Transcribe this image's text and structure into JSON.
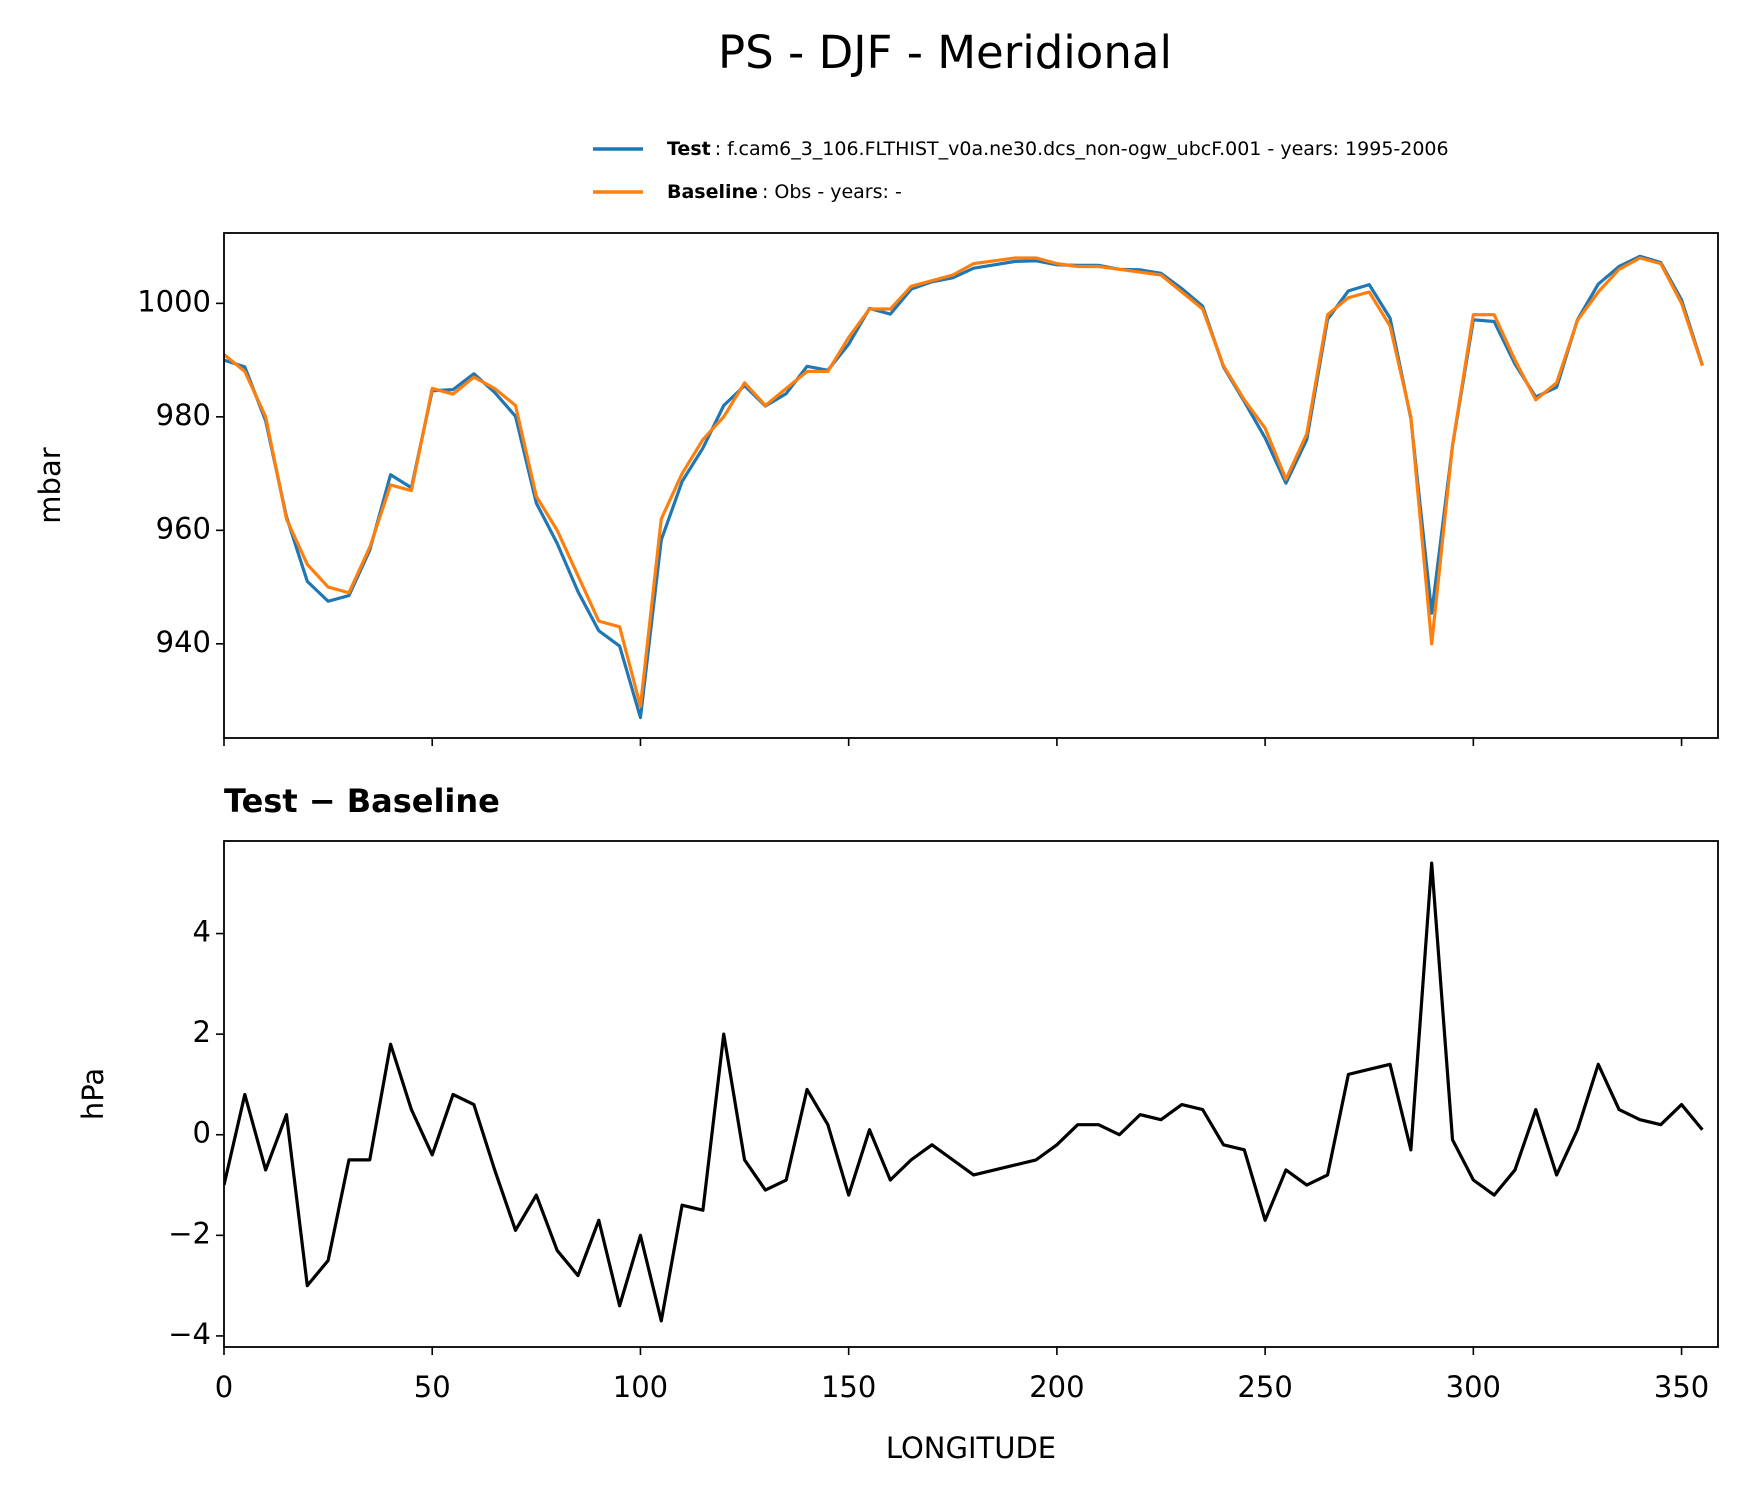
{
  "title": "PS - DJF - Meridional",
  "chart_data": [
    {
      "type": "line",
      "ylabel": "mbar",
      "x": [
        0,
        5,
        10,
        15,
        20,
        25,
        30,
        35,
        40,
        45,
        50,
        55,
        60,
        65,
        70,
        75,
        80,
        85,
        90,
        95,
        100,
        105,
        110,
        115,
        120,
        125,
        130,
        135,
        140,
        145,
        150,
        155,
        160,
        165,
        170,
        175,
        180,
        185,
        190,
        195,
        200,
        205,
        210,
        215,
        220,
        225,
        230,
        235,
        240,
        245,
        250,
        255,
        260,
        265,
        270,
        275,
        280,
        285,
        290,
        295,
        300,
        305,
        310,
        315,
        320,
        325,
        330,
        335,
        340,
        345,
        350,
        355
      ],
      "series": [
        {
          "name": "Test",
          "description": ": f.cam6_3_106.FLTHIST_v0a.ne30.dcs_non-ogw_ubcF.001 - years: 1995-2006",
          "color": "#1f77b4",
          "values": [
            990,
            988.8,
            979.3,
            962.4,
            951,
            947.5,
            948.5,
            956.5,
            969.8,
            967.5,
            984.6,
            984.8,
            987.6,
            984.3,
            980.1,
            964.8,
            957.7,
            949.2,
            942.3,
            939.6,
            927,
            958.3,
            968.6,
            974.5,
            982,
            985.5,
            981.9,
            984.1,
            988.9,
            988.2,
            992.8,
            999.1,
            998.1,
            1002.5,
            1003.8,
            1004.5,
            1006.2,
            1006.8,
            1007.4,
            1007.5,
            1006.8,
            1006.7,
            1006.7,
            1006,
            1005.9,
            1005.3,
            1002.6,
            999.5,
            988.8,
            982.7,
            976.3,
            968.3,
            976,
            997.2,
            1002.2,
            1003.3,
            997.4,
            979.7,
            945.4,
            974.9,
            997.1,
            996.8,
            989.3,
            983.5,
            985.2,
            997.1,
            1003.4,
            1006.5,
            1008.3,
            1007.2,
            1000.6,
            989.1
          ]
        },
        {
          "name": "Baseline",
          "description": ": Obs - years: -",
          "color": "#ff7f0e",
          "values": [
            991,
            988,
            980,
            962,
            954,
            950,
            949,
            957,
            968,
            967,
            985,
            984,
            987,
            985,
            982,
            966,
            960,
            952,
            944,
            943,
            929,
            962,
            970,
            976,
            980,
            986,
            982,
            985,
            988,
            988,
            994,
            999,
            999,
            1003,
            1004,
            1005,
            1007,
            1007.5,
            1008,
            1008,
            1007,
            1006.5,
            1006.5,
            1006,
            1005.5,
            1005,
            1002,
            999,
            989,
            983,
            978,
            969,
            977,
            998,
            1001,
            1002,
            996,
            980,
            940,
            975,
            998,
            998,
            990,
            983,
            986,
            997,
            1002,
            1006,
            1008,
            1007,
            1000,
            989
          ]
        }
      ],
      "xlim": [
        0,
        358.75
      ],
      "xticks": [
        0,
        50,
        100,
        150,
        200,
        250,
        300,
        350
      ],
      "xtick_labels": false,
      "ylim": [
        923.4,
        1012.4
      ],
      "yticks": [
        940,
        960,
        980,
        1000
      ]
    },
    {
      "type": "line",
      "subtitle": "Test − Baseline",
      "ylabel": "hPa",
      "xlabel": "LONGITUDE",
      "x": [
        0,
        5,
        10,
        15,
        20,
        25,
        30,
        35,
        40,
        45,
        50,
        55,
        60,
        65,
        70,
        75,
        80,
        85,
        90,
        95,
        100,
        105,
        110,
        115,
        120,
        125,
        130,
        135,
        140,
        145,
        150,
        155,
        160,
        165,
        170,
        175,
        180,
        185,
        190,
        195,
        200,
        205,
        210,
        215,
        220,
        225,
        230,
        235,
        240,
        245,
        250,
        255,
        260,
        265,
        270,
        275,
        280,
        285,
        290,
        295,
        300,
        305,
        310,
        315,
        320,
        325,
        330,
        335,
        340,
        345,
        350,
        355
      ],
      "series": [
        {
          "color": "#000000",
          "values": [
            -1,
            0.8,
            -0.7,
            0.4,
            -3,
            -2.5,
            -0.5,
            -0.5,
            1.8,
            0.5,
            -0.4,
            0.8,
            0.6,
            -0.7,
            -1.9,
            -1.2,
            -2.3,
            -2.8,
            -1.7,
            -3.4,
            -2,
            -3.7,
            -1.4,
            -1.5,
            2,
            -0.5,
            -1.1,
            -0.9,
            0.9,
            0.2,
            -1.2,
            0.1,
            -0.9,
            -0.5,
            -0.2,
            -0.5,
            -0.8,
            -0.7,
            -0.6,
            -0.5,
            -0.2,
            0.2,
            0.2,
            0,
            0.4,
            0.3,
            0.6,
            0.5,
            -0.2,
            -0.3,
            -1.7,
            -0.7,
            -1,
            -0.8,
            1.2,
            1.3,
            1.4,
            -0.3,
            5.4,
            -0.1,
            -0.9,
            -1.2,
            -0.7,
            0.5,
            -0.8,
            0.1,
            1.4,
            0.5,
            0.3,
            0.2,
            0.6,
            0.1
          ]
        }
      ],
      "xlim": [
        0,
        358.75
      ],
      "xticks": [
        0,
        50,
        100,
        150,
        200,
        250,
        300,
        350
      ],
      "xtick_labels": true,
      "ylim": [
        -4.22,
        5.84
      ],
      "yticks": [
        {
          "value": -4,
          "label": "−4"
        },
        {
          "value": -2,
          "label": "−2"
        },
        0,
        2,
        4
      ]
    }
  ]
}
